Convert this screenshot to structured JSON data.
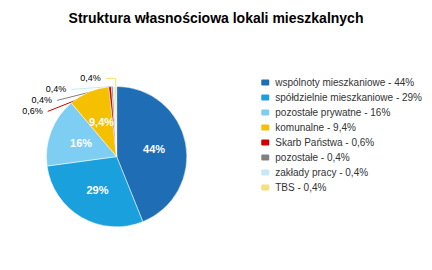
{
  "chart_data": {
    "type": "pie",
    "title": "Struktura własnościowa lokali mieszkalnych",
    "categories": [
      "wspólnoty mieszkaniowe - 44%",
      "spółdzielnie mieszkaniowe - 29%",
      "pozostałe prywatne - 16%",
      "komunalne - 9,4%",
      "Skarb Państwa - 0,6%",
      "pozostałe - 0,4%",
      "zakłady pracy - 0,4%",
      "TBS - 0,4%"
    ],
    "values": [
      44,
      29,
      16,
      9.4,
      0.6,
      0.4,
      0.4,
      0.4
    ],
    "value_labels": [
      "44%",
      "29%",
      "16%",
      "9,4%",
      "0,6%",
      "0,4%",
      "0,4%",
      "0,4%"
    ],
    "colors": [
      "#1f6eb5",
      "#1aa0dc",
      "#7ecef4",
      "#f5c000",
      "#cc0000",
      "#808080",
      "#c6e9f7",
      "#f5e07a"
    ],
    "data_labels": true,
    "legend": "right"
  }
}
